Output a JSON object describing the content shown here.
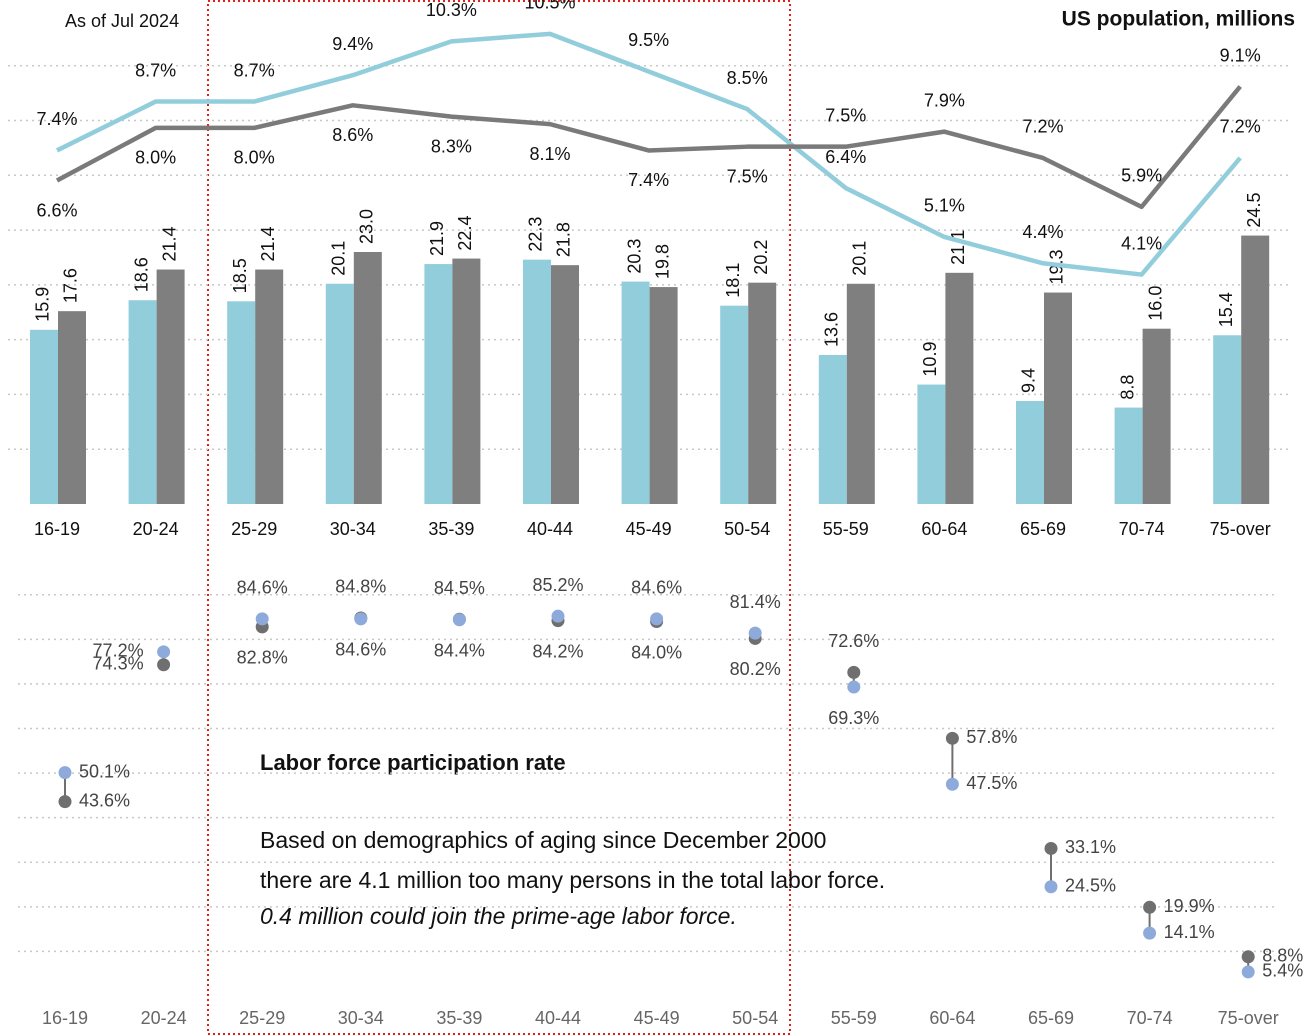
{
  "chart_data": [
    {
      "type": "bar",
      "subtitle": "As of Jul 2024",
      "title": "US population, millions",
      "categories": [
        "16-19",
        "20-24",
        "25-29",
        "30-34",
        "35-39",
        "40-44",
        "45-49",
        "50-54",
        "55-59",
        "60-64",
        "65-69",
        "70-74",
        "75-over"
      ],
      "series": [
        {
          "color": "#92cddc",
          "values": [
            15.9,
            18.6,
            18.5,
            20.1,
            21.9,
            22.3,
            20.3,
            18.1,
            13.6,
            10.9,
            9.4,
            8.8,
            15.4
          ]
        },
        {
          "color": "#7f7f7f",
          "values": [
            17.6,
            21.4,
            21.4,
            23.0,
            22.4,
            21.8,
            19.8,
            20.2,
            20.1,
            21.1,
            19.3,
            16.0,
            24.5
          ],
          "value_labels": [
            "17.6",
            "21.4",
            "21.4",
            "23.0",
            "22.4",
            "21.8",
            "19.8",
            "20.2",
            "20.1",
            "21.1",
            "19.3",
            "16.0",
            "24.5"
          ]
        },
        {
          "type": "line",
          "axis": "y2",
          "color": "#92cddc",
          "values": [
            7.4,
            8.7,
            8.7,
            9.4,
            10.3,
            10.5,
            9.5,
            8.5,
            6.4,
            5.1,
            4.4,
            4.1,
            7.2
          ],
          "value_labels": [
            "7.4%",
            "8.7%",
            "8.7%",
            "9.4%",
            "10.3%",
            "10.5%",
            "9.5%",
            "8.5%",
            "6.4%",
            "5.1%",
            "4.4%",
            "4.1%",
            "7.2%"
          ]
        },
        {
          "type": "line",
          "axis": "y2",
          "color": "#7a7a7a",
          "values": [
            6.6,
            8.0,
            8.0,
            8.6,
            8.3,
            8.1,
            7.4,
            7.5,
            7.5,
            7.9,
            7.2,
            5.9,
            9.1
          ],
          "value_labels": [
            "6.6%",
            "8.0%",
            "8.0%",
            "8.6%",
            "8.3%",
            "8.1%",
            "7.4%",
            "7.5%",
            "7.5%",
            "7.9%",
            "7.2%",
            "5.9%",
            "9.1%"
          ]
        }
      ],
      "ylim": [
        0,
        46
      ],
      "yticks": [
        5,
        10,
        15,
        20,
        25,
        30,
        35,
        40
      ],
      "y2lim": [
        -2,
        11.4
      ],
      "grid": true
    },
    {
      "type": "dot",
      "title": "Labor force participation rate",
      "annotations": [
        "Based on demographics of aging since December 2000",
        "there are 4.1 million too many persons in the total labor force.",
        "0.4 million could join the prime-age labor force."
      ],
      "categories": [
        "16-19",
        "20-24",
        "25-29",
        "30-34",
        "35-39",
        "40-44",
        "45-49",
        "50-54",
        "55-59",
        "60-64",
        "65-69",
        "70-74",
        "75-over"
      ],
      "series": [
        {
          "color": "#8eaadb",
          "values": [
            50.1,
            77.2,
            84.6,
            84.6,
            84.4,
            85.2,
            84.6,
            81.4,
            69.3,
            47.5,
            24.5,
            14.1,
            5.4
          ],
          "value_labels": [
            "50.1%",
            "77.2%",
            "84.6%",
            "84.6%",
            "84.4%",
            "85.2%",
            "84.6%",
            "81.4%",
            "69.3%",
            "47.5%",
            "24.5%",
            "14.1%",
            "5.4%"
          ]
        },
        {
          "color": "#6f6f6f",
          "values": [
            43.6,
            74.3,
            82.8,
            84.8,
            84.5,
            84.2,
            84.0,
            80.2,
            72.6,
            57.8,
            33.1,
            19.9,
            8.8
          ],
          "value_labels": [
            "43.6%",
            "74.3%",
            "82.8%",
            "84.8%",
            "84.5%",
            "84.2%",
            "84.0%",
            "80.2%",
            "72.6%",
            "57.8%",
            "33.1%",
            "19.9%",
            "8.8%"
          ]
        }
      ],
      "ylim": [
        0,
        97.8
      ],
      "yticks": [
        10,
        20,
        30,
        40,
        50,
        60,
        70,
        80,
        90
      ],
      "grid": true
    }
  ]
}
